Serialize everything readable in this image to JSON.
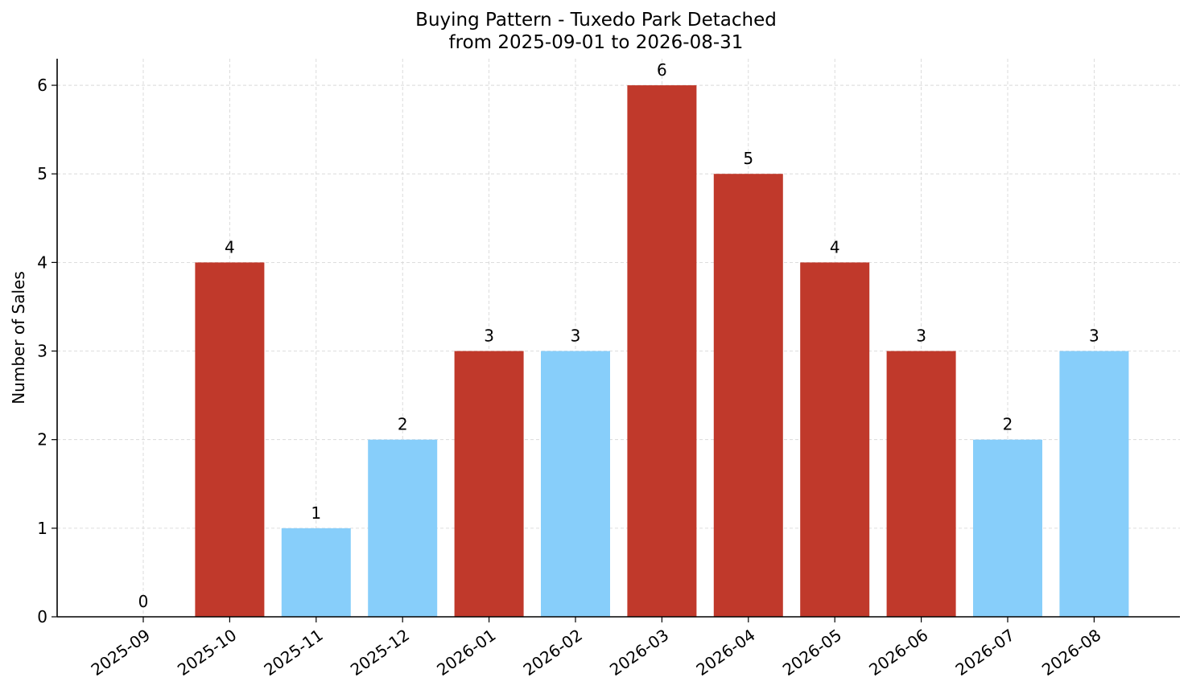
{
  "chart_data": {
    "type": "bar",
    "title": "Buying Pattern - Tuxedo Park Detached",
    "subtitle": "from 2025-09-01 to 2026-08-31",
    "xlabel": "",
    "ylabel": "Number of Sales",
    "categories": [
      "2025-09",
      "2025-10",
      "2025-11",
      "2025-12",
      "2026-01",
      "2026-02",
      "2026-03",
      "2026-04",
      "2026-05",
      "2026-06",
      "2026-07",
      "2026-08"
    ],
    "values": [
      0,
      4,
      1,
      2,
      3,
      3,
      6,
      5,
      4,
      3,
      2,
      3
    ],
    "bar_colors": [
      "#87CEFA",
      "#C0392B",
      "#87CEFA",
      "#87CEFA",
      "#C0392B",
      "#87CEFA",
      "#C0392B",
      "#C0392B",
      "#C0392B",
      "#C0392B",
      "#87CEFA",
      "#87CEFA"
    ],
    "ylim": [
      0,
      6.3
    ],
    "yticks": [
      0,
      1,
      2,
      3,
      4,
      5,
      6
    ],
    "grid": true,
    "data_labels": true,
    "colors": {
      "high": "#C0392B",
      "low": "#87CEFA",
      "grid": "#d3d3d3"
    }
  }
}
